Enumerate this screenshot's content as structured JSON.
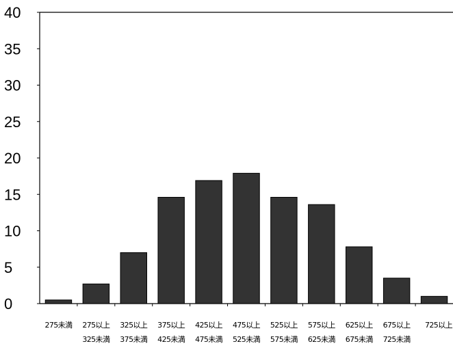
{
  "chart_data": {
    "type": "bar",
    "categories": [
      [
        "275未満"
      ],
      [
        "275以上",
        "325未満"
      ],
      [
        "325以上",
        "375未満"
      ],
      [
        "375以上",
        "425未満"
      ],
      [
        "425以上",
        "475未満"
      ],
      [
        "475以上",
        "525未満"
      ],
      [
        "525以上",
        "575未満"
      ],
      [
        "575以上",
        "625未満"
      ],
      [
        "625以上",
        "675未満"
      ],
      [
        "675以上",
        "725未満"
      ],
      [
        "725以上"
      ]
    ],
    "values": [
      0.5,
      2.7,
      7.0,
      14.6,
      16.9,
      17.9,
      14.6,
      13.6,
      7.8,
      3.5,
      1.0
    ],
    "ylim": [
      0,
      40
    ],
    "yticks": [
      0,
      5,
      10,
      15,
      20,
      25,
      30,
      35,
      40
    ],
    "title": "",
    "xlabel": "",
    "ylabel": "",
    "grid": false,
    "bar_color": "#333333"
  }
}
